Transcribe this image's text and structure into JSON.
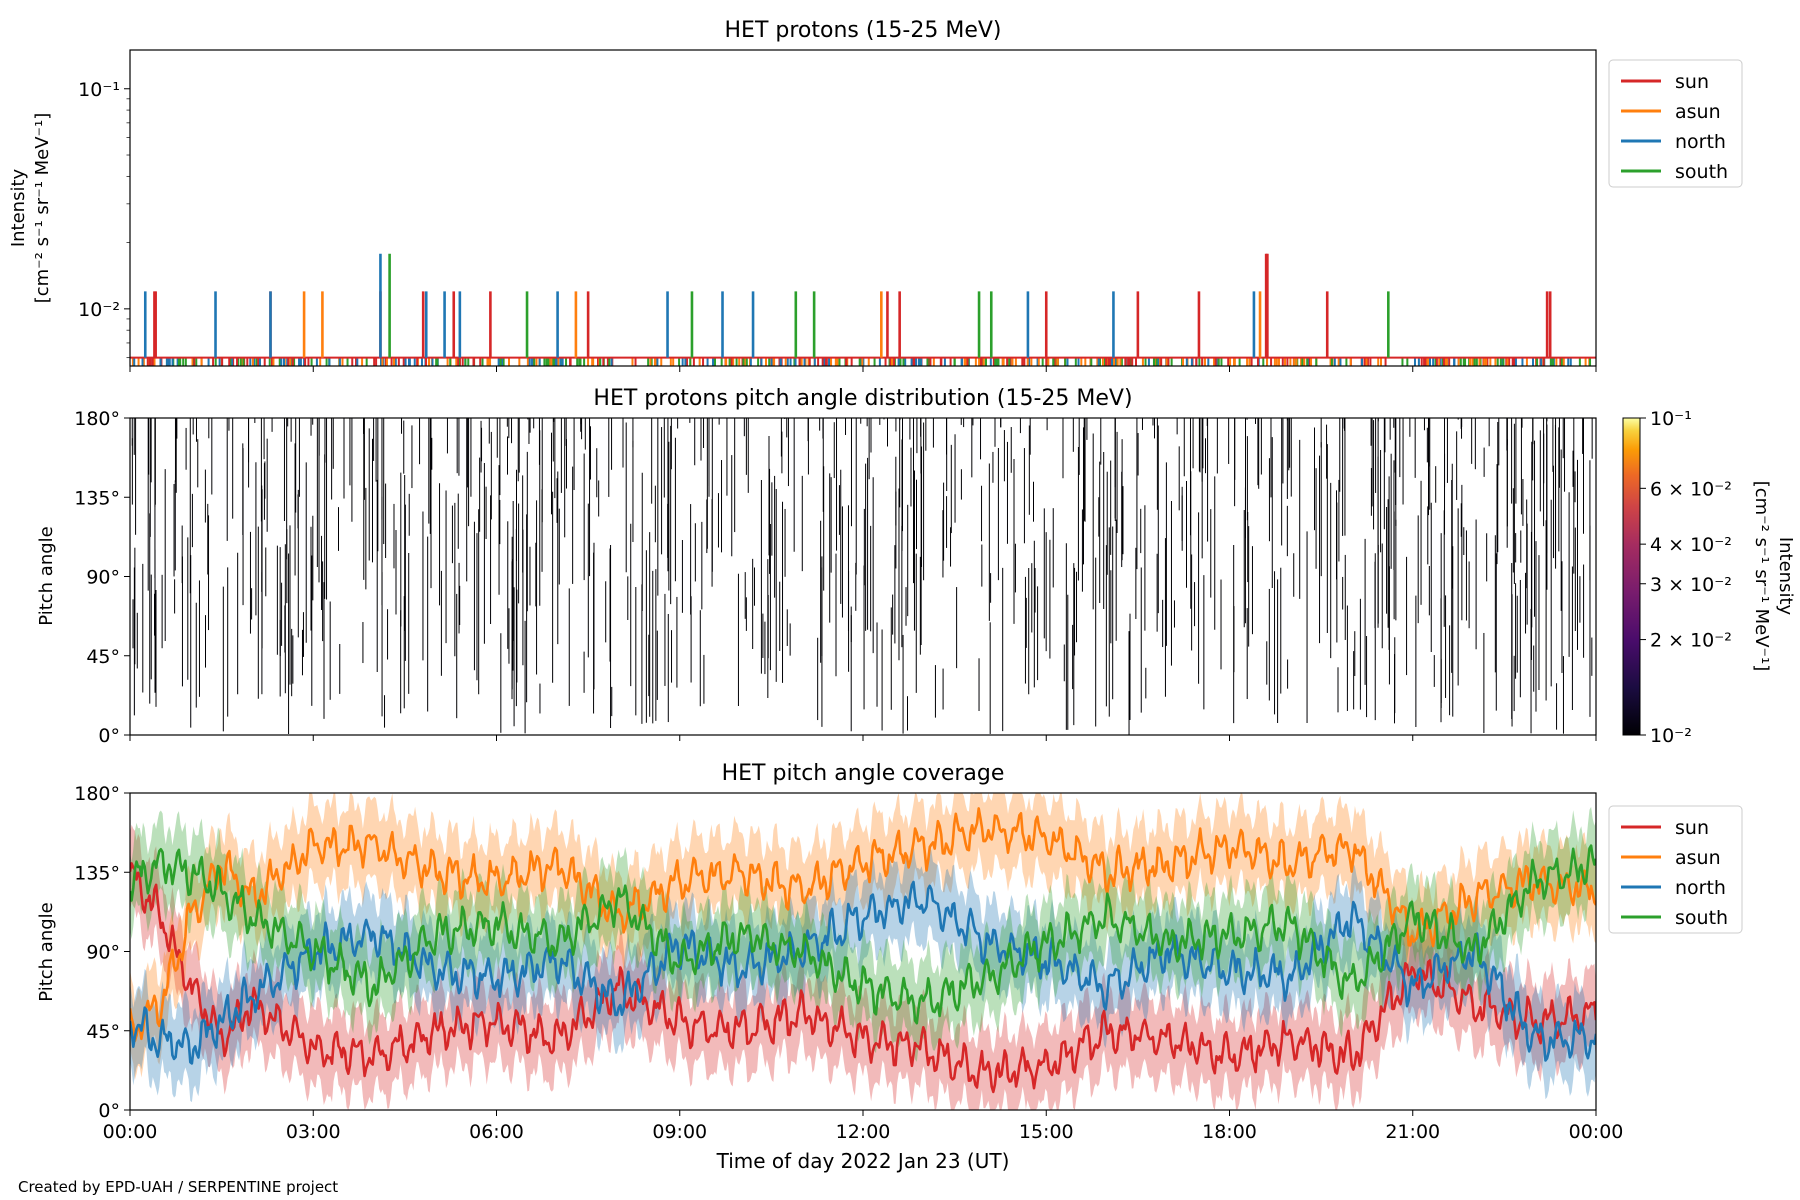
{
  "footer": {
    "credit": "Created by EPD-UAH / SERPENTINE project"
  },
  "colors": {
    "sun": "#d62728",
    "asun": "#ff7f0e",
    "north": "#1f77b4",
    "south": "#2ca02c"
  },
  "chart_data": [
    {
      "type": "line",
      "title": "HET protons (15-25 MeV)",
      "ylabel_line1": "Intensity",
      "ylabel_line2": "[cm⁻² s⁻¹ sr⁻¹ MeV⁻¹]",
      "yscale": "log",
      "ylim": [
        0.0055,
        0.15
      ],
      "ytick_labels": [
        "10⁻¹",
        "10⁻²"
      ],
      "ytick_values": [
        0.1,
        0.01
      ],
      "xlim_hours": [
        0,
        24
      ],
      "legend": {
        "placement": "outside right",
        "entries": [
          "sun",
          "asun",
          "north",
          "south"
        ]
      },
      "baseline_intensity": 0.006,
      "series": [
        {
          "name": "sun",
          "spike_hours": [
            0.4,
            0.42,
            2.3,
            4.1,
            4.8,
            5.3,
            5.9,
            7.5,
            12.4,
            12.6,
            15.0,
            16.5,
            17.5,
            18.6,
            18.62,
            19.6,
            23.2,
            23.25
          ],
          "spike_values": [
            0.012,
            0.012,
            0.012,
            0.012,
            0.012,
            0.012,
            0.012,
            0.012,
            0.012,
            0.012,
            0.012,
            0.012,
            0.012,
            0.0178,
            0.0178,
            0.012,
            0.012,
            0.012
          ]
        },
        {
          "name": "asun",
          "spike_hours": [
            2.85,
            3.15,
            7.3,
            12.3,
            18.5
          ],
          "spike_values": [
            0.012,
            0.012,
            0.012,
            0.012,
            0.012
          ]
        },
        {
          "name": "north",
          "spike_hours": [
            0.25,
            1.4,
            2.3,
            4.1,
            4.85,
            5.15,
            5.4,
            7.0,
            8.8,
            9.7,
            10.2,
            14.7,
            16.1,
            18.4
          ],
          "spike_values": [
            0.012,
            0.012,
            0.012,
            0.0178,
            0.012,
            0.012,
            0.012,
            0.012,
            0.012,
            0.012,
            0.012,
            0.012,
            0.012,
            0.012
          ]
        },
        {
          "name": "south",
          "spike_hours": [
            4.25,
            6.5,
            9.2,
            10.9,
            11.2,
            13.9,
            14.1,
            20.6
          ],
          "spike_values": [
            0.0178,
            0.012,
            0.012,
            0.012,
            0.012,
            0.012,
            0.012,
            0.012
          ]
        }
      ]
    },
    {
      "type": "heatmap",
      "title": "HET protons pitch angle distribution (15-25 MeV)",
      "ylabel": "Pitch angle",
      "ylim": [
        0,
        180
      ],
      "ytick_labels": [
        "0°",
        "45°",
        "90°",
        "135°",
        "180°"
      ],
      "ytick_values": [
        0,
        45,
        90,
        135,
        180
      ],
      "xlim_hours": [
        0,
        24
      ],
      "colorbar": {
        "label_line1": "Intensity",
        "label_line2": "[cm⁻² s⁻¹ sr⁻¹ MeV⁻¹]",
        "scale": "log",
        "range": [
          0.01,
          0.1
        ],
        "tick_labels": [
          "10⁻¹",
          "6 × 10⁻²",
          "4 × 10⁻²",
          "3 × 10⁻²",
          "2 × 10⁻²",
          "10⁻²"
        ],
        "tick_values": [
          0.1,
          0.06,
          0.04,
          0.03,
          0.02,
          0.01
        ]
      },
      "note": "sparse near-minimum intensity cells rendered as thin dark vertical marks"
    },
    {
      "type": "area",
      "title": "HET pitch angle coverage",
      "ylabel": "Pitch angle",
      "ylim": [
        0,
        180
      ],
      "ytick_labels": [
        "0°",
        "45°",
        "90°",
        "135°",
        "180°"
      ],
      "ytick_values": [
        0,
        45,
        90,
        135,
        180
      ],
      "xlabel": "Time of day 2022 Jan 23 (UT)",
      "xlim_hours": [
        0,
        24
      ],
      "xtick_labels": [
        "00:00",
        "03:00",
        "06:00",
        "09:00",
        "12:00",
        "15:00",
        "18:00",
        "21:00",
        "00:00"
      ],
      "xtick_hours": [
        0,
        3,
        6,
        9,
        12,
        15,
        18,
        21,
        24
      ],
      "legend": {
        "placement": "outside right",
        "entries": [
          "sun",
          "asun",
          "north",
          "south"
        ]
      },
      "band_half_width_deg": 22,
      "series": [
        {
          "name": "sun",
          "x_hours": [
            0,
            0.5,
            1,
            1.5,
            2,
            3,
            4,
            5,
            6,
            7,
            8,
            9,
            10,
            11,
            12,
            13,
            14,
            15,
            16,
            17,
            18,
            19,
            20,
            21,
            22,
            23,
            24
          ],
          "values": [
            135,
            110,
            70,
            40,
            60,
            35,
            30,
            45,
            50,
            40,
            70,
            50,
            45,
            55,
            40,
            35,
            20,
            25,
            45,
            40,
            30,
            40,
            30,
            80,
            60,
            50,
            55
          ]
        },
        {
          "name": "asun",
          "x_hours": [
            0,
            0.5,
            1,
            1.5,
            2,
            3,
            4,
            5,
            6,
            7,
            8,
            9,
            10,
            11,
            12,
            13,
            14,
            15,
            16,
            17,
            18,
            19,
            20,
            21,
            22,
            23,
            24
          ],
          "values": [
            45,
            60,
            110,
            140,
            120,
            150,
            150,
            135,
            130,
            140,
            110,
            130,
            135,
            125,
            140,
            150,
            160,
            155,
            135,
            140,
            150,
            140,
            150,
            100,
            120,
            130,
            125
          ]
        },
        {
          "name": "north",
          "x_hours": [
            0,
            0.5,
            1,
            1.5,
            2,
            3,
            4,
            5,
            6,
            7,
            8,
            9,
            10,
            11,
            12,
            13,
            14,
            15,
            16,
            17,
            18,
            19,
            20,
            21,
            22,
            23,
            24
          ],
          "values": [
            50,
            40,
            35,
            50,
            65,
            90,
            100,
            80,
            75,
            85,
            60,
            95,
            80,
            90,
            110,
            120,
            95,
            85,
            70,
            90,
            80,
            75,
            110,
            70,
            90,
            40,
            40
          ]
        },
        {
          "name": "south",
          "x_hours": [
            0,
            0.5,
            1,
            1.5,
            2,
            3,
            4,
            5,
            6,
            7,
            8,
            9,
            10,
            11,
            12,
            13,
            14,
            15,
            16,
            17,
            18,
            19,
            20,
            21,
            22,
            23,
            24
          ],
          "values": [
            130,
            140,
            135,
            125,
            110,
            90,
            70,
            100,
            105,
            95,
            120,
            85,
            100,
            90,
            70,
            60,
            75,
            95,
            110,
            95,
            100,
            105,
            70,
            110,
            90,
            130,
            140
          ]
        }
      ]
    }
  ]
}
